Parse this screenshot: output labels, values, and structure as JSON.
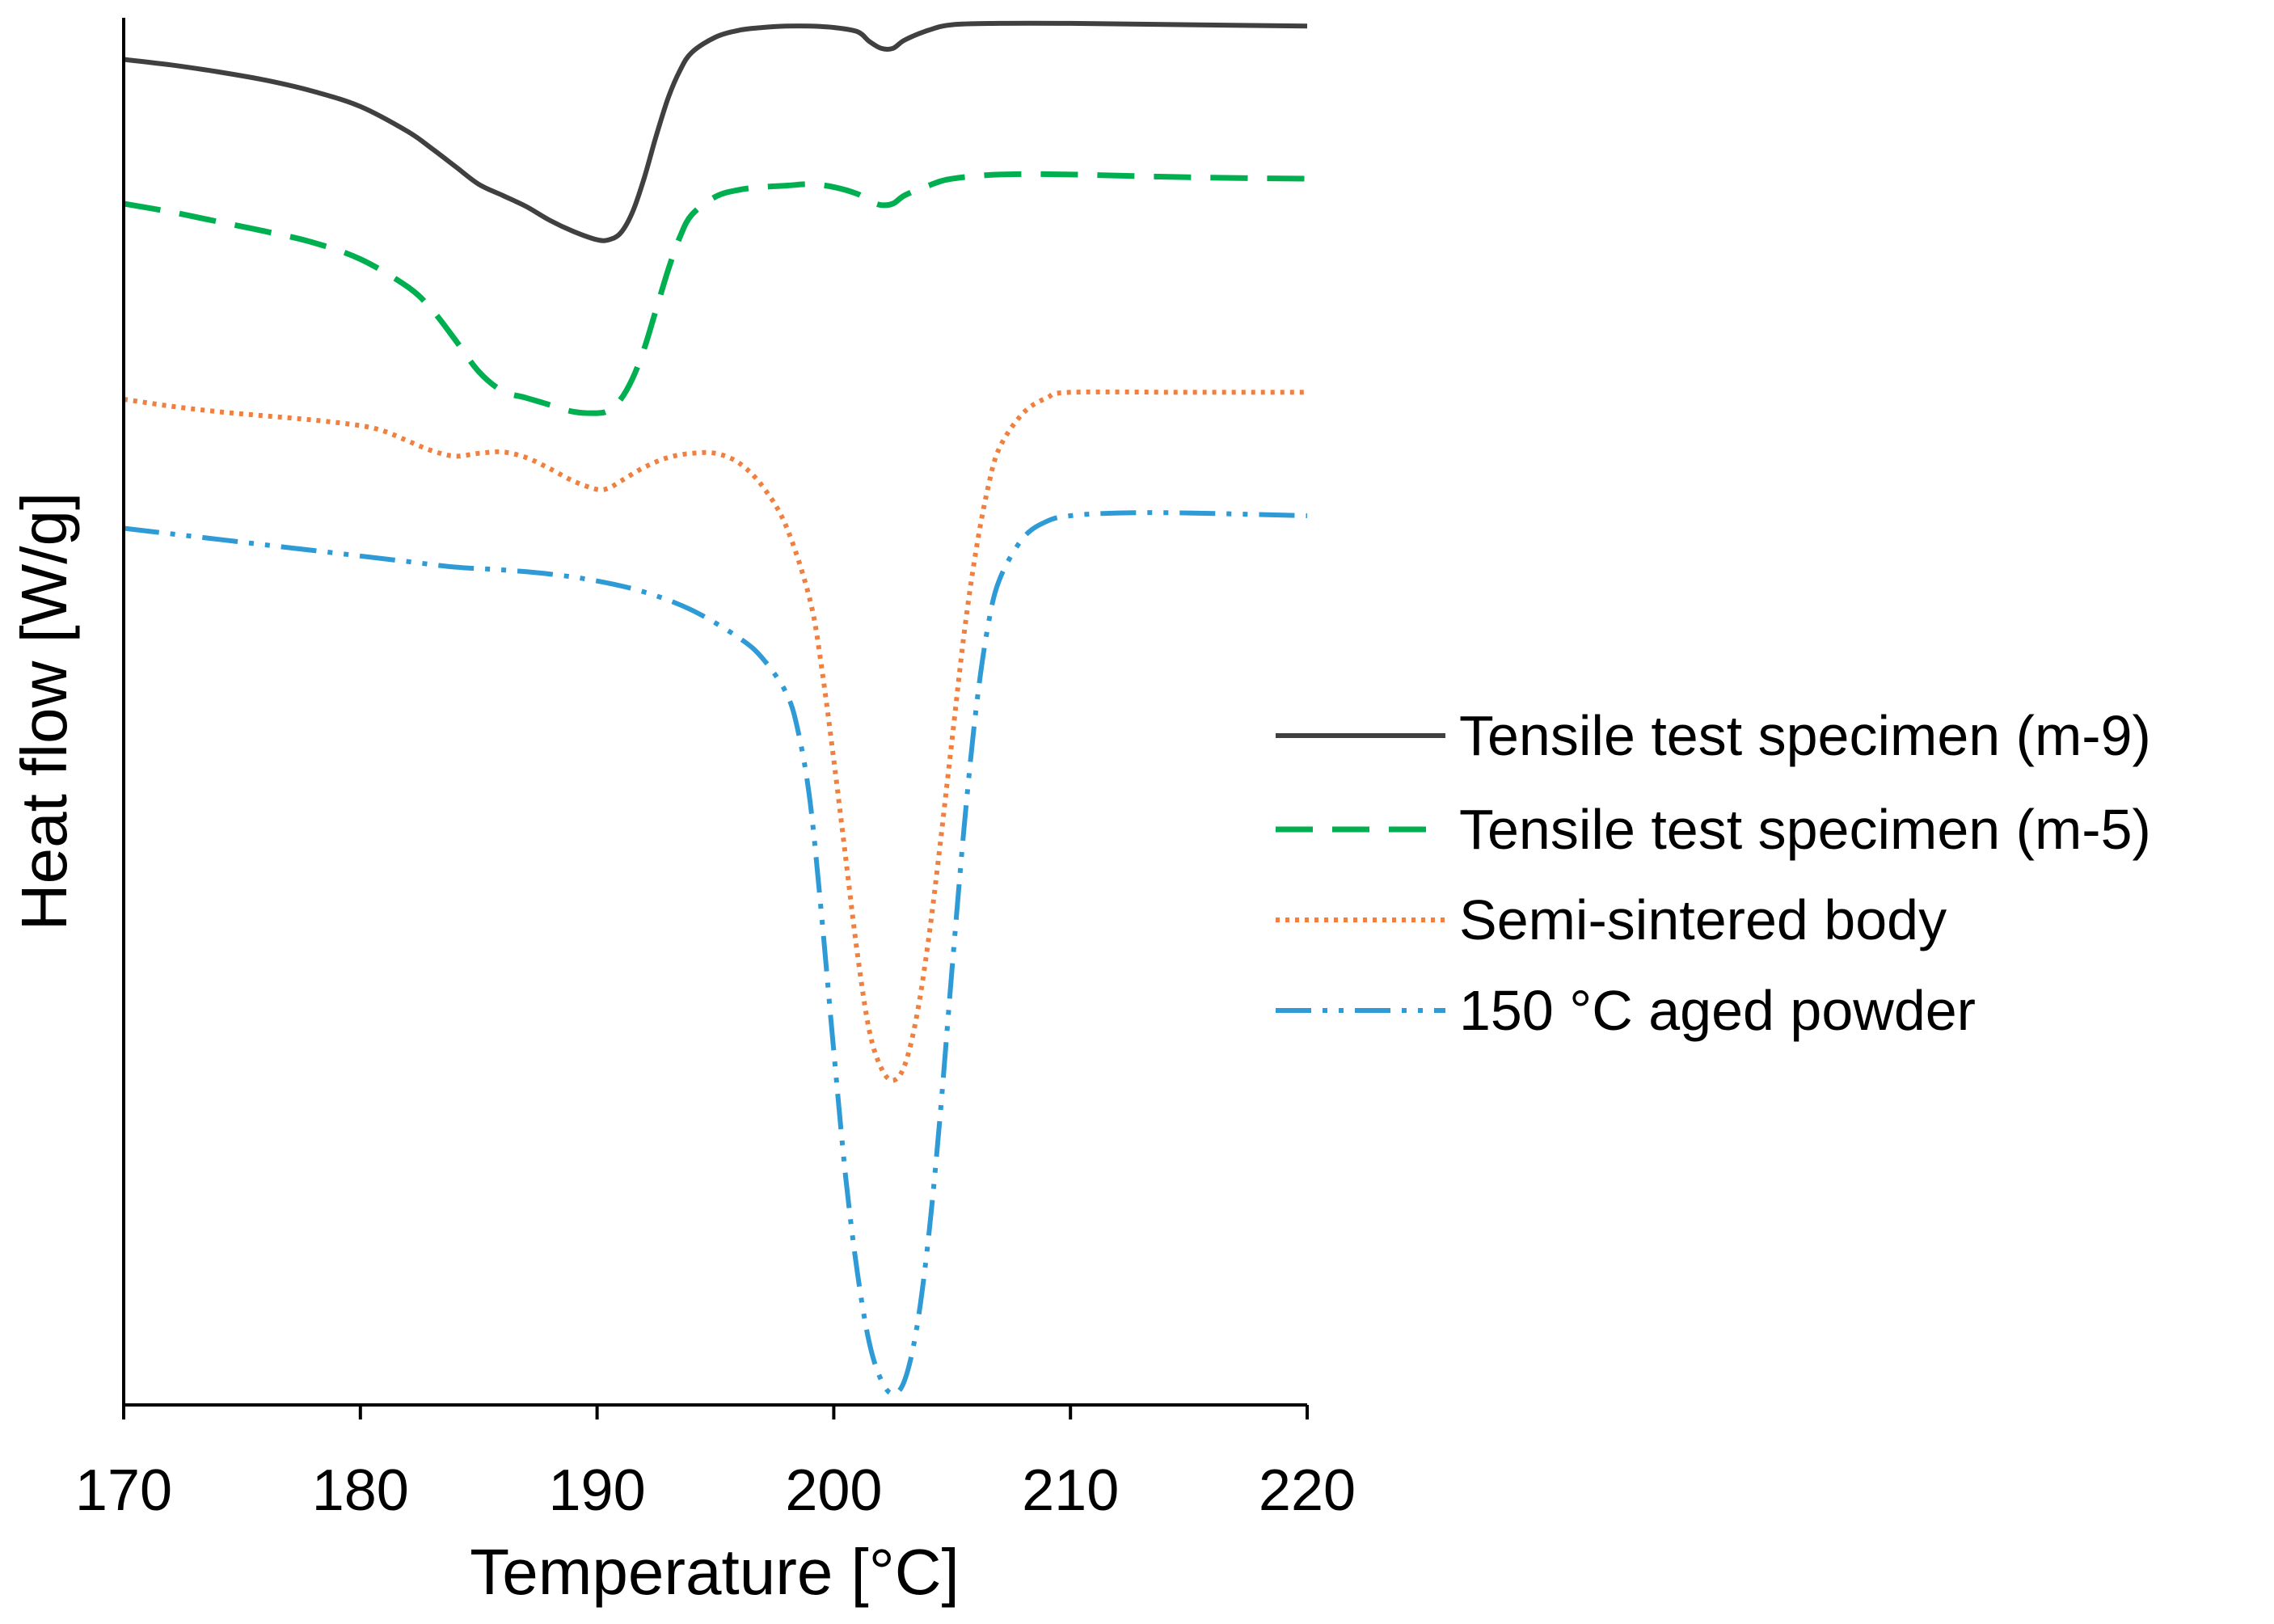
{
  "chart_data": {
    "type": "line",
    "title": "",
    "xlabel": "Temperature [°C]",
    "ylabel": "Heat flow [W/g]",
    "xlim": [
      170,
      220
    ],
    "ylim": [
      0,
      100
    ],
    "xticks": [
      "170",
      "180",
      "190",
      "200",
      "210",
      "220"
    ],
    "yticks_shown": false,
    "grid": false,
    "legend_position": "right",
    "series": [
      {
        "name": "Tensile test specimen (m-9)",
        "color": "#404040",
        "style": "solid",
        "points": [
          [
            170,
            97.0
          ],
          [
            172,
            96.6
          ],
          [
            174,
            96.1
          ],
          [
            176,
            95.5
          ],
          [
            178,
            94.7
          ],
          [
            180,
            93.6
          ],
          [
            182,
            91.8
          ],
          [
            183,
            90.6
          ],
          [
            184,
            89.3
          ],
          [
            185,
            88.0
          ],
          [
            186,
            87.2
          ],
          [
            187,
            86.4
          ],
          [
            188,
            85.4
          ],
          [
            189,
            84.6
          ],
          [
            190,
            84.0
          ],
          [
            190.5,
            84.0
          ],
          [
            191,
            84.5
          ],
          [
            191.5,
            86.0
          ],
          [
            192,
            88.5
          ],
          [
            192.5,
            91.5
          ],
          [
            193,
            94.2
          ],
          [
            193.5,
            96.2
          ],
          [
            194,
            97.5
          ],
          [
            195,
            98.6
          ],
          [
            196,
            99.1
          ],
          [
            197,
            99.3
          ],
          [
            198,
            99.4
          ],
          [
            199,
            99.4
          ],
          [
            200,
            99.3
          ],
          [
            201,
            99.0
          ],
          [
            201.5,
            98.3
          ],
          [
            202,
            97.8
          ],
          [
            202.5,
            97.8
          ],
          [
            203,
            98.4
          ],
          [
            204,
            99.1
          ],
          [
            205,
            99.5
          ],
          [
            207,
            99.6
          ],
          [
            210,
            99.6
          ],
          [
            215,
            99.5
          ],
          [
            220,
            99.4
          ]
        ]
      },
      {
        "name": "Tensile test specimen (m-5)",
        "color": "#00b050",
        "style": "dashed",
        "points": [
          [
            170,
            86.6
          ],
          [
            172,
            86.0
          ],
          [
            174,
            85.3
          ],
          [
            176,
            84.6
          ],
          [
            178,
            83.8
          ],
          [
            180,
            82.6
          ],
          [
            182,
            80.6
          ],
          [
            183,
            79.0
          ],
          [
            184,
            76.8
          ],
          [
            185,
            74.5
          ],
          [
            186,
            73.1
          ],
          [
            187,
            72.6
          ],
          [
            188,
            72.1
          ],
          [
            189,
            71.6
          ],
          [
            190,
            71.5
          ],
          [
            190.5,
            71.7
          ],
          [
            191,
            72.5
          ],
          [
            191.5,
            74.0
          ],
          [
            192,
            76.2
          ],
          [
            192.5,
            79.0
          ],
          [
            193,
            81.8
          ],
          [
            193.5,
            84.2
          ],
          [
            194,
            85.8
          ],
          [
            195,
            87.1
          ],
          [
            196,
            87.6
          ],
          [
            197,
            87.8
          ],
          [
            198,
            87.9
          ],
          [
            199,
            88.0
          ],
          [
            200,
            87.8
          ],
          [
            201,
            87.3
          ],
          [
            201.5,
            86.8
          ],
          [
            202,
            86.5
          ],
          [
            202.5,
            86.6
          ],
          [
            203,
            87.2
          ],
          [
            204,
            87.9
          ],
          [
            205,
            88.4
          ],
          [
            207,
            88.7
          ],
          [
            210,
            88.7
          ],
          [
            215,
            88.5
          ],
          [
            220,
            88.4
          ]
        ]
      },
      {
        "name": "Semi-sintered body",
        "color": "#f08040",
        "style": "dotted",
        "points": [
          [
            170,
            72.5
          ],
          [
            172,
            72.0
          ],
          [
            174,
            71.6
          ],
          [
            176,
            71.3
          ],
          [
            178,
            71.0
          ],
          [
            180,
            70.6
          ],
          [
            181,
            70.2
          ],
          [
            182,
            69.5
          ],
          [
            183,
            68.8
          ],
          [
            184,
            68.4
          ],
          [
            185,
            68.6
          ],
          [
            186,
            68.7
          ],
          [
            187,
            68.3
          ],
          [
            188,
            67.5
          ],
          [
            189,
            66.6
          ],
          [
            190,
            66.0
          ],
          [
            190.5,
            66.1
          ],
          [
            191,
            66.6
          ],
          [
            192,
            67.6
          ],
          [
            193,
            68.3
          ],
          [
            194,
            68.6
          ],
          [
            195,
            68.6
          ],
          [
            196,
            67.9
          ],
          [
            197,
            66.2
          ],
          [
            198,
            63.3
          ],
          [
            199,
            58.0
          ],
          [
            199.5,
            53.0
          ],
          [
            200,
            46.5
          ],
          [
            200.5,
            39.5
          ],
          [
            201,
            32.5
          ],
          [
            201.5,
            27.0
          ],
          [
            202,
            24.3
          ],
          [
            202.5,
            23.4
          ],
          [
            203,
            24.5
          ],
          [
            203.5,
            28.0
          ],
          [
            204,
            33.5
          ],
          [
            204.5,
            40.5
          ],
          [
            205,
            48.0
          ],
          [
            205.5,
            55.5
          ],
          [
            206,
            61.5
          ],
          [
            206.5,
            66.0
          ],
          [
            207,
            69.0
          ],
          [
            208,
            71.5
          ],
          [
            209,
            72.6
          ],
          [
            210,
            73.0
          ],
          [
            215,
            73.0
          ],
          [
            220,
            73.0
          ]
        ]
      },
      {
        "name": "150 °C aged powder",
        "color": "#2e9bd6",
        "style": "dash-dot-dot",
        "points": [
          [
            170,
            63.2
          ],
          [
            172,
            62.8
          ],
          [
            174,
            62.4
          ],
          [
            176,
            62.0
          ],
          [
            178,
            61.6
          ],
          [
            180,
            61.2
          ],
          [
            182,
            60.8
          ],
          [
            184,
            60.4
          ],
          [
            186,
            60.2
          ],
          [
            188,
            59.9
          ],
          [
            190,
            59.4
          ],
          [
            192,
            58.6
          ],
          [
            194,
            57.3
          ],
          [
            196,
            55.3
          ],
          [
            197,
            53.8
          ],
          [
            198,
            51.3
          ],
          [
            198.5,
            48.5
          ],
          [
            199,
            43.5
          ],
          [
            199.5,
            35.0
          ],
          [
            200,
            25.5
          ],
          [
            200.5,
            16.5
          ],
          [
            201,
            9.5
          ],
          [
            201.5,
            4.5
          ],
          [
            202,
            1.8
          ],
          [
            202.5,
            0.8
          ],
          [
            203,
            1.8
          ],
          [
            203.5,
            5.5
          ],
          [
            204,
            12.0
          ],
          [
            204.5,
            21.0
          ],
          [
            205,
            31.5
          ],
          [
            205.5,
            41.5
          ],
          [
            206,
            50.0
          ],
          [
            206.5,
            56.0
          ],
          [
            207,
            59.5
          ],
          [
            208,
            62.5
          ],
          [
            209,
            63.7
          ],
          [
            210,
            64.1
          ],
          [
            212,
            64.3
          ],
          [
            215,
            64.3
          ],
          [
            220,
            64.1
          ]
        ]
      }
    ]
  }
}
